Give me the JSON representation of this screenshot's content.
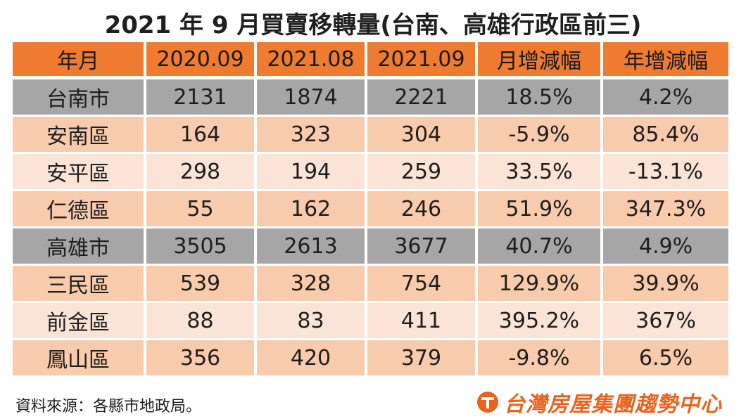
{
  "title": "2021 年 9 月買賣移轉量(台南、高雄行政區前三)",
  "table": {
    "headers": [
      "年月",
      "2020.09",
      "2021.08",
      "2021.09",
      "月增減幅",
      "年增減幅"
    ],
    "rows": [
      {
        "type": "city",
        "cells": [
          "台南市",
          "2131",
          "1874",
          "2221",
          "18.5%",
          "4.2%"
        ]
      },
      {
        "type": "district",
        "cells": [
          "安南區",
          "164",
          "323",
          "304",
          "-5.9%",
          "85.4%"
        ]
      },
      {
        "type": "district",
        "cells": [
          "安平區",
          "298",
          "194",
          "259",
          "33.5%",
          "-13.1%"
        ]
      },
      {
        "type": "district",
        "cells": [
          "仁德區",
          "55",
          "162",
          "246",
          "51.9%",
          "347.3%"
        ]
      },
      {
        "type": "city",
        "cells": [
          "高雄市",
          "3505",
          "2613",
          "3677",
          "40.7%",
          "4.9%"
        ]
      },
      {
        "type": "district",
        "cells": [
          "三民區",
          "539",
          "328",
          "754",
          "129.9%",
          "39.9%"
        ]
      },
      {
        "type": "district",
        "cells": [
          "前金區",
          "88",
          "83",
          "411",
          "395.2%",
          "367%"
        ]
      },
      {
        "type": "district",
        "cells": [
          "鳳山區",
          "356",
          "420",
          "379",
          "-9.8%",
          "6.5%"
        ]
      }
    ]
  },
  "source": "資料來源：各縣市地政局。",
  "brand": {
    "name": "台灣房屋集團趨勢中心",
    "logo_icon": "taiwan-realty-logo-icon",
    "color": "#e8641e"
  },
  "colors": {
    "header": "#ee7b30",
    "city_row": "#a6a6a6",
    "district_row_a": "#f7cbac",
    "district_row_b": "#fbe4d5"
  }
}
